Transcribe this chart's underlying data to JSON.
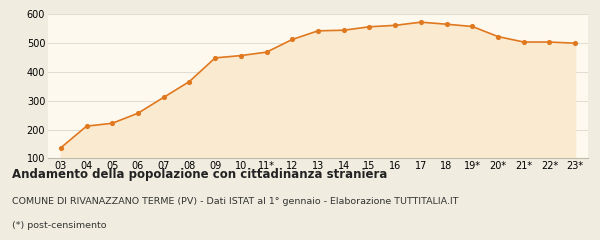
{
  "x_labels": [
    "03",
    "04",
    "05",
    "06",
    "07",
    "08",
    "09",
    "10",
    "11*",
    "12",
    "13",
    "14",
    "15",
    "16",
    "17",
    "18",
    "19*",
    "20*",
    "21*",
    "22*",
    "23*"
  ],
  "y_values": [
    137,
    212,
    222,
    257,
    312,
    367,
    449,
    457,
    469,
    513,
    543,
    545,
    557,
    562,
    573,
    566,
    558,
    523,
    504,
    504,
    500
  ],
  "line_color": "#e07820",
  "fill_color": "#faebd0",
  "marker_color": "#e07820",
  "bg_color": "#fdf9ef",
  "grid_color": "#e0ddd0",
  "fig_bg_color": "#f0ede0",
  "ylim": [
    100,
    600
  ],
  "yticks": [
    100,
    200,
    300,
    400,
    500,
    600
  ],
  "title": "Andamento della popolazione con cittadinanza straniera",
  "subtitle": "COMUNE DI RIVANAZZANO TERME (PV) - Dati ISTAT al 1° gennaio - Elaborazione TUTTITALIA.IT",
  "footnote": "(*) post-censimento",
  "title_fontsize": 8.5,
  "subtitle_fontsize": 6.8,
  "footnote_fontsize": 6.8,
  "axis_fontsize": 7.0
}
